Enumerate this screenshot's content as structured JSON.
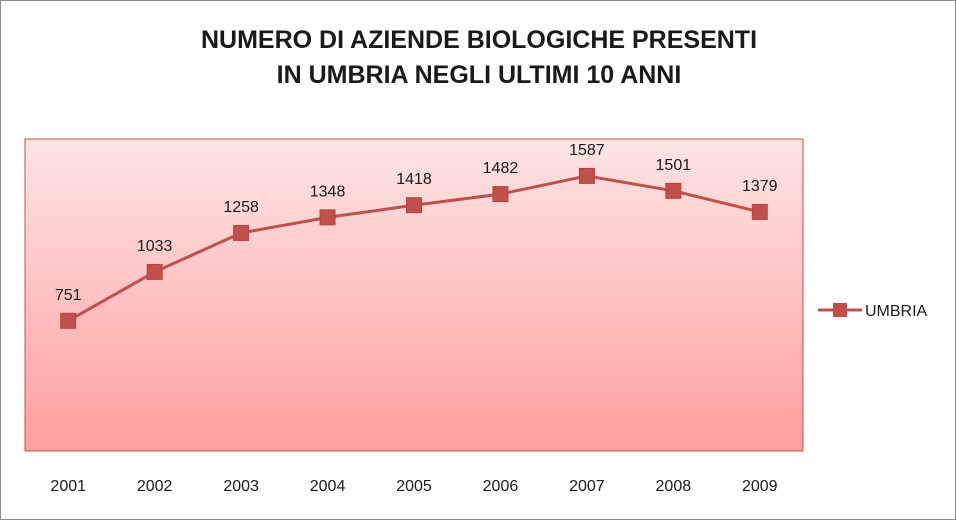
{
  "chart_data": {
    "type": "line",
    "title_lines": [
      "NUMERO DI AZIENDE BIOLOGICHE PRESENTI",
      "IN UMBRIA NEGLI ULTIMI 10 ANNI"
    ],
    "categories": [
      "2001",
      "2002",
      "2003",
      "2004",
      "2005",
      "2006",
      "2007",
      "2008",
      "2009"
    ],
    "series": [
      {
        "name": "UMBRIA",
        "values": [
          751,
          1033,
          1258,
          1348,
          1418,
          1482,
          1587,
          1501,
          1379
        ],
        "color": "#c0504d"
      }
    ],
    "ylim": [
      0,
      1800
    ],
    "grid": false,
    "data_labels": true,
    "legend_position": "right",
    "plot_background": [
      "#ffe5e5",
      "#ff9f9f"
    ],
    "plot_border_color": "#c0504d"
  }
}
